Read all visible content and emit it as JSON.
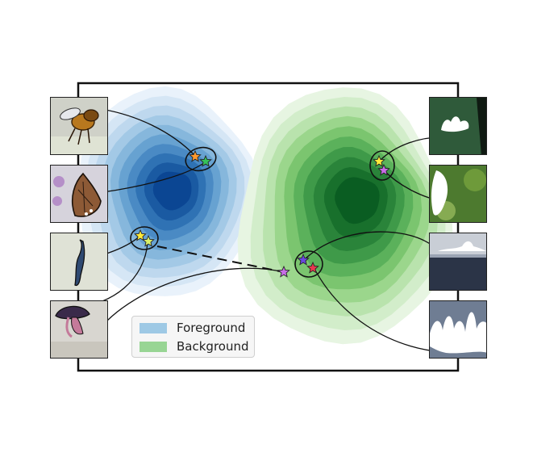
{
  "legend": {
    "items": [
      {
        "label": "Foreground",
        "color": "#9ec9e5"
      },
      {
        "label": "Background",
        "color": "#98d594"
      }
    ]
  },
  "colors": {
    "foreground_density": [
      "#e9f2fb",
      "#d5e6f5",
      "#bed8ee",
      "#a3c9e6",
      "#86b7dc",
      "#67a2d1",
      "#4a8ac4",
      "#2f72b4",
      "#1a5aa2",
      "#0b4693"
    ],
    "background_density": [
      "#e7f5e2",
      "#d2edca",
      "#b9e3ad",
      "#9bd68c",
      "#7bc56f",
      "#5bb15b",
      "#3f9a49",
      "#2a843a",
      "#18702c",
      "#0a5d22"
    ],
    "star_colors": [
      "#ffeb3b",
      "#ff9a2e",
      "#35c25a",
      "#c96ee8",
      "#6a48e0",
      "#e8384f",
      "#d9f06a"
    ]
  },
  "thumbnails_left": [
    {
      "subject": "bee-image"
    },
    {
      "subject": "butterfly-image"
    },
    {
      "subject": "lizard-image"
    },
    {
      "subject": "mushroom-image"
    }
  ],
  "thumbnails_right": [
    {
      "subject": "caterpillar-background-image"
    },
    {
      "subject": "leaf-background-image"
    },
    {
      "subject": "water-background-image"
    },
    {
      "subject": "rocks-background-image"
    }
  ]
}
